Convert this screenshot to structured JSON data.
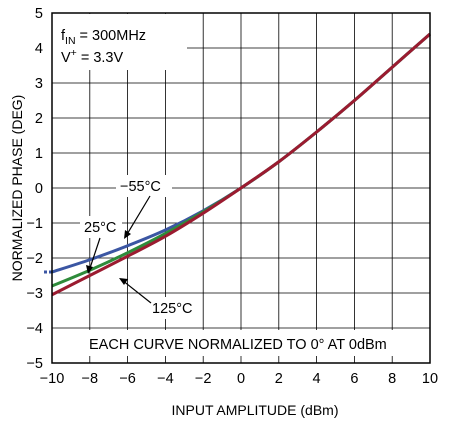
{
  "chart_data": {
    "type": "line",
    "title": "",
    "xlabel": "INPUT AMPLITUDE (dBm)",
    "ylabel": "NORMALIZED PHASE (DEG)",
    "xlim": [
      -10,
      10
    ],
    "ylim": [
      -5,
      5
    ],
    "x_ticks": [
      "−10",
      "−8",
      "−6",
      "−4",
      "−2",
      "0",
      "2",
      "4",
      "6",
      "8",
      "10"
    ],
    "y_ticks": [
      "−5",
      "−4",
      "−3",
      "−2",
      "−1",
      "0",
      "1",
      "2",
      "3",
      "4",
      "5"
    ],
    "grid": true,
    "series": [
      {
        "name": "−55°C",
        "color": "#3b56a3",
        "x": [
          -10,
          -8,
          -6,
          -4,
          -2,
          0,
          2,
          4,
          6,
          8,
          10
        ],
        "y": [
          -2.4,
          -2.05,
          -1.65,
          -1.2,
          -0.65,
          0,
          0.75,
          1.6,
          2.5,
          3.45,
          4.4
        ]
      },
      {
        "name": "25°C",
        "color": "#2e8b3a",
        "x": [
          -10,
          -8,
          -6,
          -4,
          -2,
          0,
          2,
          4,
          6,
          8,
          10
        ],
        "y": [
          -2.8,
          -2.35,
          -1.85,
          -1.3,
          -0.68,
          0,
          0.75,
          1.6,
          2.5,
          3.45,
          4.4
        ]
      },
      {
        "name": "125°C",
        "color": "#9b1b30",
        "x": [
          -10,
          -8,
          -6,
          -4,
          -2,
          0,
          2,
          4,
          6,
          8,
          10
        ],
        "y": [
          -3.05,
          -2.5,
          -1.95,
          -1.38,
          -0.72,
          0,
          0.75,
          1.6,
          2.5,
          3.45,
          4.4
        ]
      }
    ],
    "annotations": {
      "fin_prefix": "f",
      "fin_sub": "IN",
      "fin_suffix": " = 300MHz",
      "vplus_prefix": "V",
      "vplus_sup": "+",
      "vplus_suffix": " = 3.3V",
      "note": "EACH CURVE NORMALIZED TO 0° AT 0dBm"
    }
  }
}
